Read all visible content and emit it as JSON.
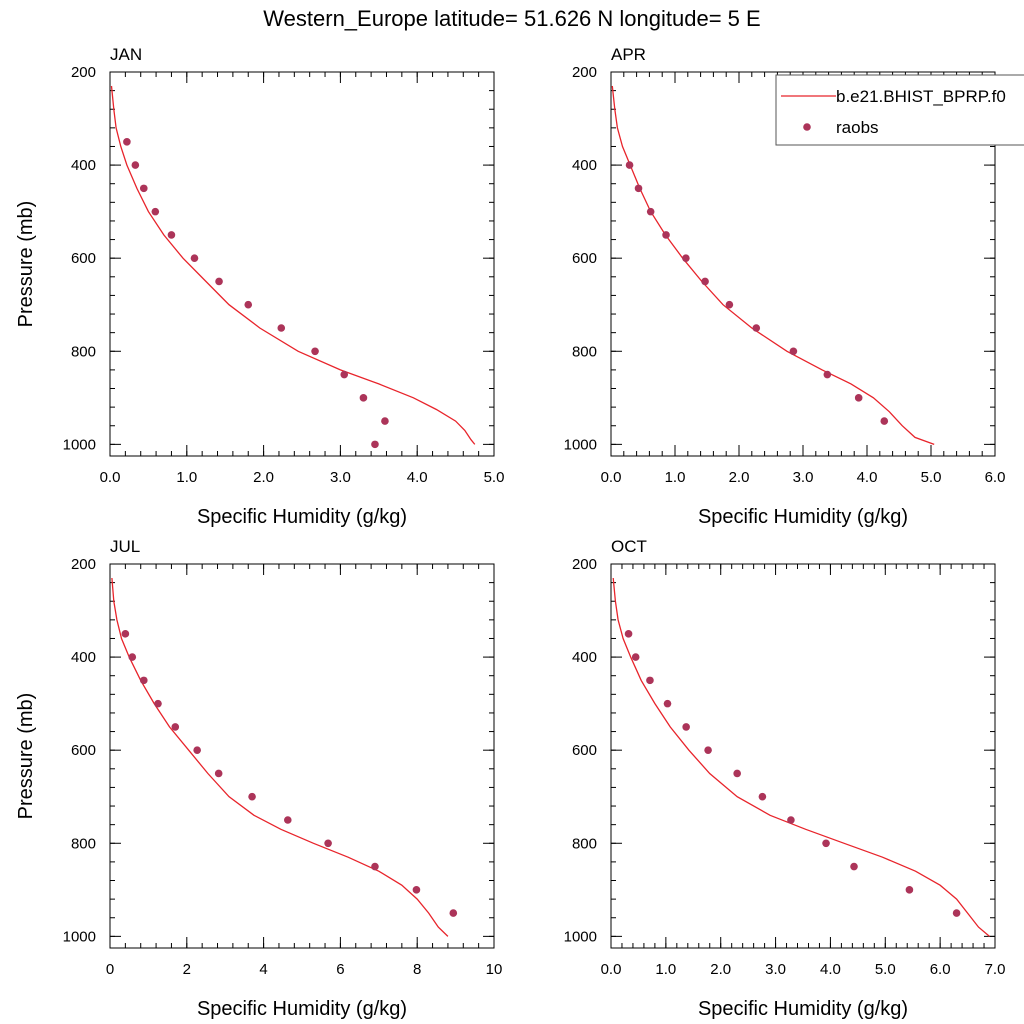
{
  "title": "Western_Europe  latitude= 51.626 N longitude= 5 E",
  "legend": {
    "model_label": "b.e21.BHIST_BPRP.f0",
    "obs_label": "raobs",
    "placement": "top-right"
  },
  "colors": {
    "model": "#e8242b",
    "obs": "#ac3459"
  },
  "chart_data": [
    {
      "type": "line",
      "title": "JAN",
      "xlabel": "Specific Humidity (g/kg)",
      "ylabel": "Pressure (mb)",
      "xlim": [
        0,
        5
      ],
      "ylim": [
        200,
        1025
      ],
      "y_reversed": true,
      "xticks": [
        0,
        1,
        2,
        3,
        4,
        5
      ],
      "xtick_labels": [
        "0.0",
        "1.0",
        "2.0",
        "3.0",
        "4.0",
        "5.0"
      ],
      "yticks": [
        200,
        400,
        600,
        800,
        1000
      ],
      "ytick_labels": [
        "200",
        "400",
        "600",
        "800",
        "1000"
      ],
      "series": [
        {
          "name": "b.e21.BHIST_BPRP.f0",
          "style": "line",
          "x": [
            0.02,
            0.05,
            0.08,
            0.14,
            0.22,
            0.35,
            0.5,
            0.7,
            0.95,
            1.25,
            1.55,
            1.95,
            2.45,
            3.0,
            3.5,
            3.95,
            4.25,
            4.5,
            4.62,
            4.7,
            4.75
          ],
          "y": [
            230,
            280,
            320,
            360,
            400,
            450,
            500,
            550,
            600,
            650,
            700,
            750,
            800,
            840,
            870,
            900,
            925,
            950,
            970,
            990,
            1000
          ]
        },
        {
          "name": "raobs",
          "style": "points",
          "x": [
            0.22,
            0.33,
            0.44,
            0.59,
            0.8,
            1.1,
            1.42,
            1.8,
            2.23,
            2.67,
            3.05,
            3.3,
            3.58,
            3.45
          ],
          "y": [
            350,
            400,
            450,
            500,
            550,
            600,
            650,
            700,
            750,
            800,
            850,
            900,
            950,
            1000
          ]
        }
      ]
    },
    {
      "type": "line",
      "title": "APR",
      "xlabel": "Specific Humidity (g/kg)",
      "ylabel": "",
      "xlim": [
        0,
        6
      ],
      "ylim": [
        200,
        1025
      ],
      "y_reversed": true,
      "xticks": [
        0,
        1,
        2,
        3,
        4,
        5,
        6
      ],
      "xtick_labels": [
        "0.0",
        "1.0",
        "2.0",
        "3.0",
        "4.0",
        "5.0",
        "6.0"
      ],
      "yticks": [
        200,
        400,
        600,
        800,
        1000
      ],
      "ytick_labels": [
        "200",
        "400",
        "600",
        "800",
        "1000"
      ],
      "series": [
        {
          "name": "b.e21.BHIST_BPRP.f0",
          "style": "line",
          "x": [
            0.02,
            0.06,
            0.1,
            0.18,
            0.3,
            0.45,
            0.62,
            0.85,
            1.12,
            1.42,
            1.75,
            2.2,
            2.75,
            3.3,
            3.75,
            4.1,
            4.35,
            4.55,
            4.75,
            5.05
          ],
          "y": [
            230,
            280,
            320,
            360,
            400,
            450,
            500,
            550,
            600,
            650,
            700,
            750,
            800,
            840,
            870,
            900,
            930,
            960,
            985,
            1000
          ]
        },
        {
          "name": "raobs",
          "style": "points",
          "x": [
            0.29,
            0.43,
            0.62,
            0.86,
            1.17,
            1.47,
            1.85,
            2.27,
            2.85,
            3.38,
            3.87,
            4.27
          ],
          "y": [
            400,
            450,
            500,
            550,
            600,
            650,
            700,
            750,
            800,
            850,
            900,
            950
          ]
        }
      ]
    },
    {
      "type": "line",
      "title": "JUL",
      "xlabel": "Specific Humidity (g/kg)",
      "ylabel": "Pressure (mb)",
      "xlim": [
        0,
        10
      ],
      "ylim": [
        200,
        1025
      ],
      "y_reversed": true,
      "xticks": [
        0,
        2,
        4,
        6,
        8,
        10
      ],
      "xtick_labels": [
        "0",
        "2",
        "4",
        "6",
        "8",
        "10"
      ],
      "yticks": [
        200,
        400,
        600,
        800,
        1000
      ],
      "ytick_labels": [
        "200",
        "400",
        "600",
        "800",
        "1000"
      ],
      "series": [
        {
          "name": "b.e21.BHIST_BPRP.f0",
          "style": "line",
          "x": [
            0.05,
            0.1,
            0.18,
            0.3,
            0.5,
            0.8,
            1.15,
            1.55,
            2.05,
            2.55,
            3.1,
            3.75,
            4.45,
            5.3,
            6.2,
            7.0,
            7.6,
            8.0,
            8.3,
            8.55,
            8.8
          ],
          "y": [
            230,
            280,
            320,
            360,
            400,
            450,
            500,
            550,
            600,
            650,
            700,
            740,
            770,
            800,
            830,
            860,
            890,
            920,
            950,
            980,
            1000
          ]
        },
        {
          "name": "raobs",
          "style": "points",
          "x": [
            0.4,
            0.58,
            0.88,
            1.25,
            1.7,
            2.27,
            2.83,
            3.7,
            4.63,
            5.68,
            6.9,
            7.98,
            8.94
          ],
          "y": [
            350,
            400,
            450,
            500,
            550,
            600,
            650,
            700,
            750,
            800,
            850,
            900,
            950
          ]
        }
      ]
    },
    {
      "type": "line",
      "title": "OCT",
      "xlabel": "Specific Humidity (g/kg)",
      "ylabel": "",
      "xlim": [
        0,
        7
      ],
      "ylim": [
        200,
        1025
      ],
      "y_reversed": true,
      "xticks": [
        0,
        1,
        2,
        3,
        4,
        5,
        6,
        7
      ],
      "xtick_labels": [
        "0.0",
        "1.0",
        "2.0",
        "3.0",
        "4.0",
        "5.0",
        "6.0",
        "7.0"
      ],
      "yticks": [
        200,
        400,
        600,
        800,
        1000
      ],
      "ytick_labels": [
        "200",
        "400",
        "600",
        "800",
        "1000"
      ],
      "series": [
        {
          "name": "b.e21.BHIST_BPRP.f0",
          "style": "line",
          "x": [
            0.04,
            0.08,
            0.13,
            0.22,
            0.36,
            0.55,
            0.8,
            1.08,
            1.42,
            1.8,
            2.3,
            2.9,
            3.55,
            4.25,
            4.95,
            5.55,
            6.0,
            6.3,
            6.5,
            6.7,
            6.9
          ],
          "y": [
            230,
            280,
            320,
            360,
            400,
            450,
            500,
            550,
            600,
            650,
            700,
            740,
            770,
            800,
            830,
            860,
            890,
            920,
            950,
            980,
            1000
          ]
        },
        {
          "name": "raobs",
          "style": "points",
          "x": [
            0.32,
            0.45,
            0.71,
            1.03,
            1.37,
            1.77,
            2.3,
            2.76,
            3.28,
            3.92,
            4.43,
            5.44,
            6.3
          ],
          "y": [
            350,
            400,
            450,
            500,
            550,
            600,
            650,
            700,
            750,
            800,
            850,
            900,
            950
          ]
        }
      ]
    }
  ]
}
